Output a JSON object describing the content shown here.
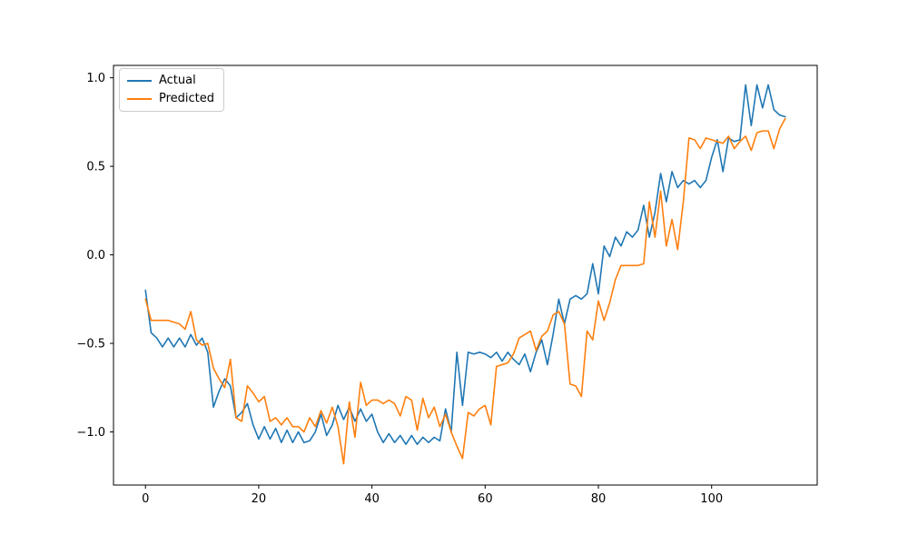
{
  "figure": {
    "background": "#ffffff",
    "legend": {
      "position": "upper left",
      "entries": [
        {
          "label": "Actual",
          "color": "#1f77b4"
        },
        {
          "label": "Predicted",
          "color": "#ff7f0e"
        }
      ]
    }
  },
  "chart_data": {
    "type": "line",
    "title": "",
    "xlabel": "",
    "ylabel": "",
    "grid": false,
    "legend_position": "upper left",
    "xlim": [
      -5.65,
      118.65
    ],
    "ylim": [
      -1.3,
      1.07
    ],
    "x_ticks": [
      0,
      20,
      40,
      60,
      80,
      100
    ],
    "y_ticks": [
      -1.0,
      -0.5,
      0.0,
      0.5,
      1.0
    ],
    "x_tick_labels": [
      "0",
      "20",
      "40",
      "60",
      "80",
      "100"
    ],
    "y_tick_labels": [
      "−1.0",
      "−0.5",
      "0.0",
      "0.5",
      "1.0"
    ],
    "x": [
      0,
      1,
      2,
      3,
      4,
      5,
      6,
      7,
      8,
      9,
      10,
      11,
      12,
      13,
      14,
      15,
      16,
      17,
      18,
      19,
      20,
      21,
      22,
      23,
      24,
      25,
      26,
      27,
      28,
      29,
      30,
      31,
      32,
      33,
      34,
      35,
      36,
      37,
      38,
      39,
      40,
      41,
      42,
      43,
      44,
      45,
      46,
      47,
      48,
      49,
      50,
      51,
      52,
      53,
      54,
      55,
      56,
      57,
      58,
      59,
      60,
      61,
      62,
      63,
      64,
      65,
      66,
      67,
      68,
      69,
      70,
      71,
      72,
      73,
      74,
      75,
      76,
      77,
      78,
      79,
      80,
      81,
      82,
      83,
      84,
      85,
      86,
      87,
      88,
      89,
      90,
      91,
      92,
      93,
      94,
      95,
      96,
      97,
      98,
      99,
      100,
      101,
      102,
      103,
      104,
      105,
      106,
      107,
      108,
      109,
      110,
      111,
      112,
      113
    ],
    "series": [
      {
        "name": "Actual",
        "color": "#1f77b4",
        "values": [
          -0.2,
          -0.44,
          -0.47,
          -0.52,
          -0.47,
          -0.52,
          -0.47,
          -0.52,
          -0.45,
          -0.51,
          -0.47,
          -0.55,
          -0.86,
          -0.77,
          -0.7,
          -0.74,
          -0.92,
          -0.89,
          -0.84,
          -0.96,
          -1.04,
          -0.97,
          -1.04,
          -0.98,
          -1.06,
          -0.99,
          -1.06,
          -1.0,
          -1.06,
          -1.05,
          -1.0,
          -0.9,
          -1.02,
          -0.96,
          -0.85,
          -0.93,
          -0.86,
          -0.94,
          -0.87,
          -0.94,
          -0.9,
          -1.0,
          -1.06,
          -1.01,
          -1.06,
          -1.02,
          -1.07,
          -1.02,
          -1.07,
          -1.03,
          -1.06,
          -1.03,
          -1.05,
          -0.87,
          -1.0,
          -0.55,
          -0.85,
          -0.55,
          -0.56,
          -0.55,
          -0.56,
          -0.58,
          -0.55,
          -0.6,
          -0.55,
          -0.59,
          -0.62,
          -0.56,
          -0.66,
          -0.55,
          -0.48,
          -0.62,
          -0.45,
          -0.25,
          -0.39,
          -0.25,
          -0.23,
          -0.25,
          -0.22,
          -0.05,
          -0.22,
          0.05,
          -0.01,
          0.1,
          0.05,
          0.13,
          0.1,
          0.14,
          0.28,
          0.1,
          0.24,
          0.46,
          0.3,
          0.47,
          0.38,
          0.42,
          0.4,
          0.42,
          0.38,
          0.42,
          0.55,
          0.65,
          0.47,
          0.66,
          0.64,
          0.65,
          0.96,
          0.73,
          0.96,
          0.83,
          0.96,
          0.82,
          0.79,
          0.78
        ]
      },
      {
        "name": "Predicted",
        "color": "#ff7f0e",
        "values": [
          -0.25,
          -0.37,
          -0.37,
          -0.37,
          -0.37,
          -0.38,
          -0.39,
          -0.42,
          -0.32,
          -0.48,
          -0.51,
          -0.5,
          -0.64,
          -0.7,
          -0.75,
          -0.59,
          -0.92,
          -0.94,
          -0.74,
          -0.78,
          -0.83,
          -0.8,
          -0.94,
          -0.92,
          -0.96,
          -0.92,
          -0.97,
          -0.97,
          -1.0,
          -0.92,
          -0.97,
          -0.88,
          -0.95,
          -0.86,
          -0.97,
          -1.18,
          -0.83,
          -1.03,
          -0.72,
          -0.85,
          -0.82,
          -0.82,
          -0.84,
          -0.82,
          -0.84,
          -0.91,
          -0.8,
          -0.82,
          -0.99,
          -0.81,
          -0.92,
          -0.86,
          -0.97,
          -0.9,
          -1.0,
          -1.08,
          -1.15,
          -0.89,
          -0.91,
          -0.87,
          -0.85,
          -0.96,
          -0.63,
          -0.62,
          -0.61,
          -0.56,
          -0.47,
          -0.45,
          -0.43,
          -0.54,
          -0.46,
          -0.43,
          -0.34,
          -0.32,
          -0.39,
          -0.73,
          -0.74,
          -0.8,
          -0.43,
          -0.48,
          -0.26,
          -0.37,
          -0.27,
          -0.14,
          -0.06,
          -0.06,
          -0.06,
          -0.06,
          -0.05,
          0.3,
          0.1,
          0.36,
          0.05,
          0.2,
          0.03,
          0.3,
          0.66,
          0.65,
          0.6,
          0.66,
          0.65,
          0.64,
          0.63,
          0.67,
          0.6,
          0.64,
          0.67,
          0.59,
          0.69,
          0.7,
          0.7,
          0.6,
          0.71,
          0.77
        ]
      }
    ]
  }
}
